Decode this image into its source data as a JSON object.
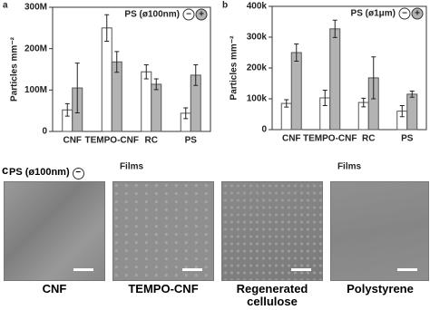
{
  "chart_data": [
    {
      "type": "bar",
      "panel": "a",
      "legend_title": "PS (ø100nm)",
      "ylabel": "Particles mm⁻²",
      "xlabel": "Films",
      "categories": [
        "CNF",
        "TEMPO-CNF",
        "RC",
        "PS"
      ],
      "series": [
        {
          "name": "−",
          "color": "#ffffff",
          "values": [
            52000000,
            250000000,
            144000000,
            44000000
          ],
          "errors": [
            15000000,
            32000000,
            17000000,
            13000000
          ]
        },
        {
          "name": "+",
          "color": "#b3b3b3",
          "values": [
            105000000,
            168000000,
            114000000,
            136000000
          ],
          "errors": [
            60000000,
            25000000,
            13000000,
            25000000
          ]
        }
      ],
      "ylim": [
        0,
        300000000
      ],
      "yticks": [
        0,
        {
          "value": 100000000,
          "label": "100M"
        },
        {
          "value": 200000000,
          "label": "200M"
        },
        {
          "value": 300000000,
          "label": "300M"
        }
      ]
    },
    {
      "type": "bar",
      "panel": "b",
      "legend_title": "PS (ø1μm)",
      "ylabel": "Particles mm⁻²",
      "xlabel": "Films",
      "categories": [
        "CNF",
        "TEMPO-CNF",
        "RC",
        "PS"
      ],
      "series": [
        {
          "name": "−",
          "color": "#ffffff",
          "values": [
            85000,
            103000,
            88000,
            60000
          ],
          "errors": [
            12000,
            25000,
            14000,
            18000
          ]
        },
        {
          "name": "+",
          "color": "#b3b3b3",
          "values": [
            250000,
            327000,
            168000,
            115000
          ],
          "errors": [
            28000,
            28000,
            68000,
            10000
          ]
        }
      ],
      "ylim": [
        0,
        400000
      ],
      "yticks": [
        0,
        {
          "value": 100000,
          "label": "100k"
        },
        {
          "value": 200000,
          "label": "200k"
        },
        {
          "value": 300000,
          "label": "300k"
        },
        {
          "value": 400000,
          "label": "400k"
        }
      ]
    }
  ],
  "panel_c": {
    "label": "c",
    "legend": "PS (ø100nm)",
    "sign": "−",
    "images": [
      {
        "caption": "CNF"
      },
      {
        "caption": "TEMPO-CNF"
      },
      {
        "caption": "Regenerated cellulose"
      },
      {
        "caption": "Polystyrene"
      }
    ]
  }
}
